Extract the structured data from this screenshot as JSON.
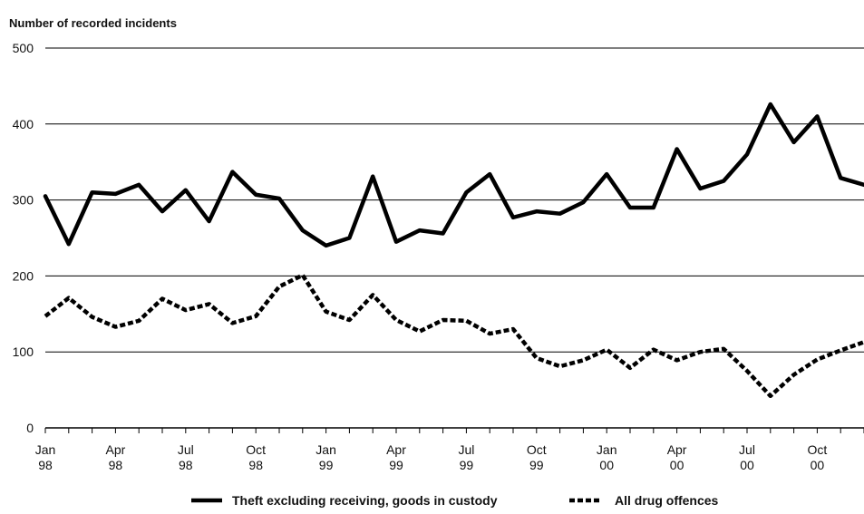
{
  "chart_data": {
    "type": "line",
    "ylabel": "Number of recorded incidents",
    "ylim": [
      0,
      500
    ],
    "yticks": [
      0,
      100,
      200,
      300,
      400,
      500
    ],
    "grid": "horizontal",
    "legend_position": "bottom",
    "x": [
      "Jan 98",
      "Feb 98",
      "Mar 98",
      "Apr 98",
      "May 98",
      "Jun 98",
      "Jul 98",
      "Aug 98",
      "Sep 98",
      "Oct 98",
      "Nov 98",
      "Dec 98",
      "Jan 99",
      "Feb 99",
      "Mar 99",
      "Apr 99",
      "May 99",
      "Jun 99",
      "Jul 99",
      "Aug 99",
      "Sep 99",
      "Oct 99",
      "Nov 99",
      "Dec 99",
      "Jan 00",
      "Feb 00",
      "Mar 00",
      "Apr 00",
      "May 00",
      "Jun 00",
      "Jul 00",
      "Aug 00",
      "Sep 00",
      "Oct 00",
      "Nov 00",
      "Dec 00"
    ],
    "xtick_labels": [
      {
        "index": 0,
        "line1": "Jan",
        "line2": "98"
      },
      {
        "index": 3,
        "line1": "Apr",
        "line2": "98"
      },
      {
        "index": 6,
        "line1": "Jul",
        "line2": "98"
      },
      {
        "index": 9,
        "line1": "Oct",
        "line2": "98"
      },
      {
        "index": 12,
        "line1": "Jan",
        "line2": "99"
      },
      {
        "index": 15,
        "line1": "Apr",
        "line2": "99"
      },
      {
        "index": 18,
        "line1": "Jul",
        "line2": "99"
      },
      {
        "index": 21,
        "line1": "Oct",
        "line2": "99"
      },
      {
        "index": 24,
        "line1": "Jan",
        "line2": "00"
      },
      {
        "index": 27,
        "line1": "Apr",
        "line2": "00"
      },
      {
        "index": 30,
        "line1": "Jul",
        "line2": "00"
      },
      {
        "index": 33,
        "line1": "Oct",
        "line2": "00"
      }
    ],
    "series": [
      {
        "name": "Theft excluding receiving, goods in custody",
        "style": "solid",
        "color": "#000000",
        "values": [
          305,
          242,
          310,
          308,
          320,
          285,
          313,
          272,
          337,
          307,
          302,
          260,
          240,
          250,
          331,
          245,
          260,
          256,
          310,
          334,
          277,
          285,
          282,
          297,
          334,
          290,
          290,
          367,
          315,
          325,
          360,
          426,
          376,
          410,
          329,
          320
        ]
      },
      {
        "name": "All drug offences",
        "style": "dashed",
        "color": "#000000",
        "values": [
          147,
          171,
          146,
          133,
          141,
          170,
          155,
          163,
          138,
          147,
          186,
          201,
          153,
          142,
          175,
          142,
          127,
          142,
          141,
          124,
          130,
          92,
          81,
          89,
          103,
          79,
          103,
          89,
          100,
          104,
          75,
          42,
          70,
          90,
          102,
          113
        ]
      }
    ]
  }
}
